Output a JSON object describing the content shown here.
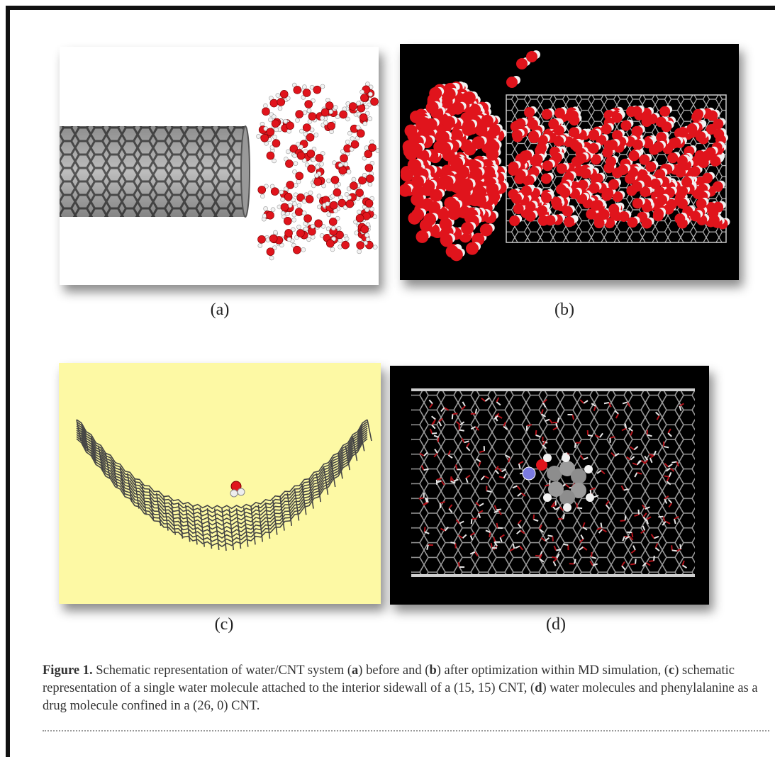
{
  "figure": {
    "labels": {
      "a": "(a)",
      "b": "(b)",
      "c": "(c)",
      "d": "(d)"
    },
    "caption": {
      "title": "Figure 1.",
      "t1": " Schematic representation of water/CNT system (",
      "a": "a",
      "t2": ") before and (",
      "b": "b",
      "t3": ") after optimization within MD simulation, (",
      "c": "c",
      "t4": ") schematic representation of a single water molecule attached to the interior sidewall of a (15, 15) CNT, (",
      "d": "d",
      "t5": ") water molecules and phenylalanine as a drug molecule confined in a (26, 0) CNT."
    }
  },
  "colors": {
    "oxygen": "#e0141c",
    "hydrogen": "#f2f2f2",
    "tube_grey": "#6f6f6f",
    "panel_c_bg": "#fdf9a4",
    "nitrogen": "#7a7ae0"
  }
}
